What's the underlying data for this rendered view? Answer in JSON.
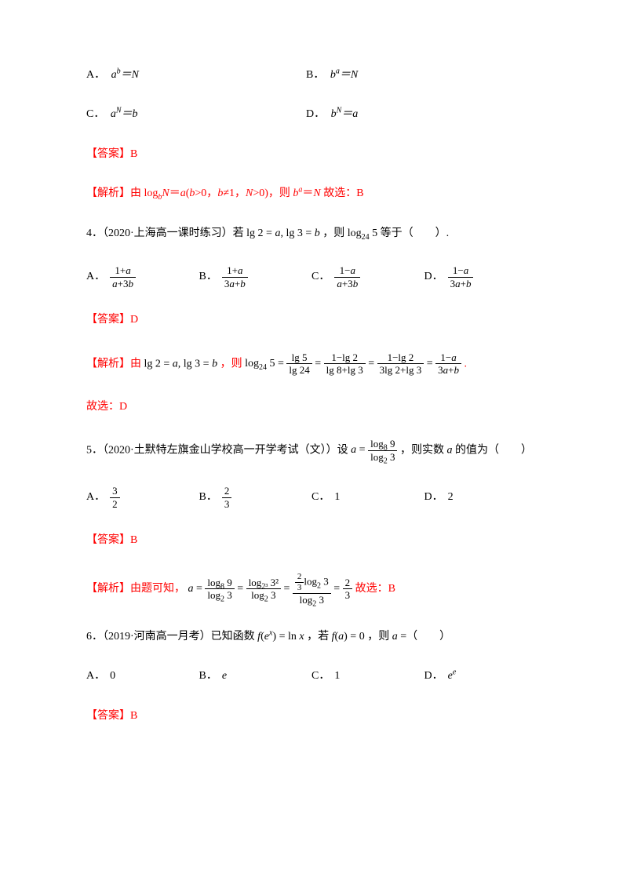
{
  "q3": {
    "optA_label": "A．",
    "optA_text": "a^b＝N",
    "optB_label": "B．",
    "optB_text": "b^a＝N",
    "optC_label": "C．",
    "optC_text": "a^N＝b",
    "optD_label": "D．",
    "optD_text": "b^N＝a",
    "answer_label": "【答案】",
    "answer_value": "B",
    "analysis_label": "【解析】",
    "analysis_text": "由",
    "analysis_mid": "log_bN＝a(b>0，b≠1，N>0)，则 b^a＝N 故选：",
    "analysis_end": "B"
  },
  "q4": {
    "number": "4．",
    "source": "（2020·上海高一课时练习）",
    "stem_pre": "若",
    "stem_math": "lg 2 = a, lg 3 = b",
    "stem_mid": "，则",
    "stem_math2": "log₂₄ 5",
    "stem_post": "等于（　　）.",
    "optA_label": "A．",
    "optA_num": "1+a",
    "optA_den": "a+3b",
    "optB_label": "B．",
    "optB_num": "1+a",
    "optB_den": "3a+b",
    "optC_label": "C．",
    "optC_num": "1−a",
    "optC_den": "a+3b",
    "optD_label": "D．",
    "optD_num": "1−a",
    "optD_den": "3a+b",
    "answer_label": "【答案】",
    "answer_value": "D",
    "analysis_label": "【解析】",
    "analysis_pre": "由",
    "analysis_math1": "lg 2 = a, lg 3 = b",
    "analysis_mid": "，则",
    "analysis_fr1_num": "lg 5",
    "analysis_fr1_den": "lg 24",
    "analysis_fr2_num": "1−lg 2",
    "analysis_fr2_den": "lg 8+lg 3",
    "analysis_fr3_num": "1−lg 2",
    "analysis_fr3_den": "3lg 2+lg 3",
    "analysis_fr4_num": "1−a",
    "analysis_fr4_den": "3a+b",
    "conclusion": "故选：D"
  },
  "q5": {
    "number": "5．",
    "source": "（2020·土默特左旗金山学校高一开学考试（文））",
    "stem_pre": "设",
    "stem_a": "a =",
    "stem_num": "log₈ 9",
    "stem_den": "log₂ 3",
    "stem_post": "，则实数 a 的值为（　　）",
    "optA_label": "A．",
    "optA_num": "3",
    "optA_den": "2",
    "optB_label": "B．",
    "optB_num": "2",
    "optB_den": "3",
    "optC_label": "C．",
    "optC_value": "1",
    "optD_label": "D．",
    "optD_value": "2",
    "answer_label": "【答案】",
    "answer_value": "B",
    "analysis_label": "【解析】",
    "analysis_pre": "由题可知，",
    "analysis_conclusion": "故选：B"
  },
  "q6": {
    "number": "6．",
    "source": "（2019·河南高一月考）",
    "stem_pre": "已知函数",
    "stem_f": "f(eˣ) = ln x",
    "stem_mid": "，若",
    "stem_fa": "f(a) = 0",
    "stem_post": "，则 a =（　　）",
    "optA_label": "A．",
    "optA_value": "0",
    "optB_label": "B．",
    "optB_value": "e",
    "optC_label": "C．",
    "optC_value": "1",
    "optD_label": "D．",
    "optD_value": "eᵉ",
    "answer_label": "【答案】",
    "answer_value": "B"
  }
}
